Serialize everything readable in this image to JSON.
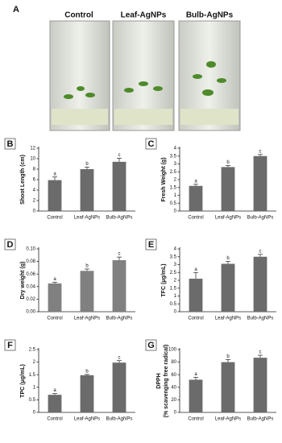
{
  "panel_a": {
    "label": "A",
    "photos": [
      "Control",
      "Leaf-AgNPs",
      "Bulb-AgNPs"
    ]
  },
  "chart_data": [
    {
      "type": "bar",
      "panel": "B",
      "y_label": "Shoot Length (cm)",
      "categories": [
        "Control",
        "Leaf-AgNPs",
        "Bulb-AgNPs"
      ],
      "values": [
        5.9,
        8.0,
        9.4
      ],
      "errors": [
        0.6,
        0.4,
        0.7
      ],
      "letters": [
        "a",
        "b",
        "c"
      ],
      "ylim": [
        0,
        12
      ],
      "yticks": [
        0,
        2,
        4,
        6,
        8,
        10,
        12
      ],
      "color": "#6b6b6b"
    },
    {
      "type": "bar",
      "panel": "C",
      "y_label": "Fresh Weight (g)",
      "categories": [
        "Control",
        "Leaf-AgNPs",
        "Bulb-AgNPs"
      ],
      "values": [
        1.6,
        2.8,
        3.5
      ],
      "errors": [
        0.1,
        0.1,
        0.1
      ],
      "letters": [
        "a",
        "b",
        "c"
      ],
      "ylim": [
        0,
        4
      ],
      "yticks": [
        0,
        0.5,
        1,
        1.5,
        2,
        2.5,
        3,
        3.5,
        4
      ],
      "color": "#6b6b6b"
    },
    {
      "type": "bar",
      "panel": "D",
      "y_label": "Dry weight (g)",
      "categories": [
        "Control",
        "Leaf-AgNPs",
        "Bulb-AgNPs"
      ],
      "values": [
        0.045,
        0.065,
        0.082
      ],
      "errors": [
        0.002,
        0.003,
        0.005
      ],
      "letters": [
        "a",
        "b",
        "c"
      ],
      "ylim": [
        0,
        0.1
      ],
      "yticks": [
        {
          "value": 0,
          "label": "0.00"
        },
        {
          "value": 0.02,
          "label": "0.02"
        },
        {
          "value": 0.04,
          "label": "0.04"
        },
        {
          "value": 0.06,
          "label": "0.06"
        },
        {
          "value": 0.08,
          "label": "0.08"
        },
        {
          "value": 0.1,
          "label": "0.10"
        }
      ],
      "color": "#808080"
    },
    {
      "type": "bar",
      "panel": "E",
      "y_label": "TFC (μg/mL)",
      "categories": [
        "Control",
        "Leaf-AgNPs",
        "Bulb-AgNPs"
      ],
      "values": [
        2.1,
        3.05,
        3.5
      ],
      "errors": [
        0.4,
        0.15,
        0.15
      ],
      "letters": [
        "a",
        "b",
        "c"
      ],
      "ylim": [
        0,
        4
      ],
      "yticks": [
        0,
        0.5,
        1,
        1.5,
        2,
        2.5,
        3,
        3.5,
        4
      ],
      "color": "#6b6b6b"
    },
    {
      "type": "bar",
      "panel": "F",
      "y_label": "TPC (μg/mL)",
      "categories": [
        "Control",
        "Leaf-AgNPs",
        "Bulb-AgNPs"
      ],
      "values": [
        0.7,
        1.48,
        1.98
      ],
      "errors": [
        0.05,
        0.03,
        0.08
      ],
      "letters": [
        "a",
        "b",
        "c"
      ],
      "ylim": [
        0,
        2.5
      ],
      "yticks": [
        0,
        0.5,
        1,
        1.5,
        2,
        2.5
      ],
      "color": "#6b6b6b"
    },
    {
      "type": "bar",
      "panel": "G",
      "y_label": [
        "DPPH",
        "(% scavenging free radical)"
      ],
      "categories": [
        "Control",
        "Leaf-AgNPs",
        "Bulb-AgNPs"
      ],
      "values": [
        52,
        80,
        87
      ],
      "errors": [
        4,
        4,
        4
      ],
      "letters": [
        "a",
        "b",
        "c"
      ],
      "ylim": [
        0,
        100
      ],
      "yticks": [
        0,
        20,
        40,
        60,
        80,
        100
      ],
      "color": "#6b6b6b"
    }
  ]
}
